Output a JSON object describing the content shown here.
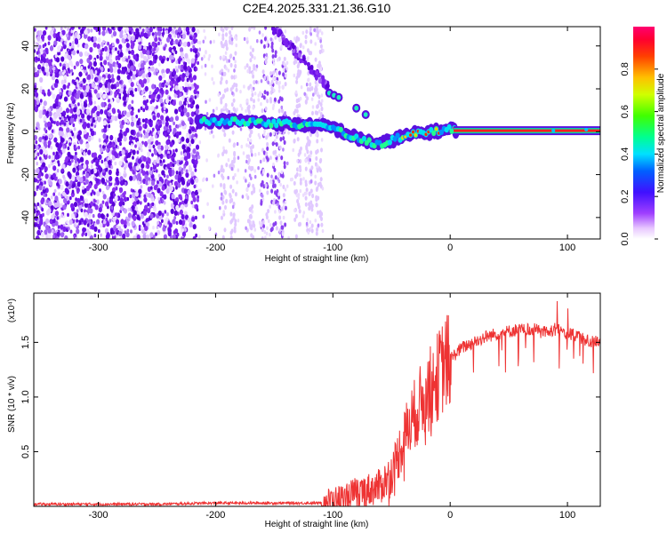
{
  "figure": {
    "title": "C2E4.2025.331.21.36.G10"
  },
  "chart_data": [
    {
      "type": "heatmap",
      "xlabel": "Height of straight line (km)",
      "ylabel": "Frequency (Hz)",
      "xlim": [
        -355,
        128
      ],
      "ylim": [
        -50,
        49
      ],
      "x_ticks": [
        -300,
        -200,
        -100,
        0,
        100
      ],
      "y_ticks": [
        -40,
        -20,
        0,
        20,
        40
      ],
      "colorbar": {
        "label": "Normalized spectral amplitude",
        "range": [
          0,
          1
        ],
        "ticks": [
          0.0,
          0.2,
          0.4,
          0.6,
          0.8
        ],
        "tick_labels": [
          "0.0",
          "0.2",
          "0.4",
          "0.6",
          "0.8"
        ],
        "colors": [
          "#ffffff",
          "#c080ff",
          "#6020e0",
          "#0040ff",
          "#00c0ff",
          "#00ff80",
          "#60ff00",
          "#ffff00",
          "#ff8000",
          "#ff0000",
          "#ff0060"
        ]
      },
      "signal_trace": {
        "x": [
          -215,
          -180,
          -150,
          -120,
          -100,
          -80,
          -60,
          -45,
          -30,
          -15,
          0,
          30,
          60,
          90,
          128
        ],
        "y": [
          5,
          5,
          4,
          3,
          2,
          -3,
          -6,
          -3,
          -1,
          0,
          1,
          0.5,
          0.5,
          0.5,
          0.5
        ]
      },
      "grid": false
    },
    {
      "type": "line",
      "xlabel": "Height of straight line (km)",
      "ylabel": "SNR (10 * v/v)",
      "multiplier": "(x10⁴)",
      "xlim": [
        -355,
        128
      ],
      "ylim": [
        0,
        1.95
      ],
      "x_ticks": [
        -300,
        -200,
        -100,
        0,
        100
      ],
      "y_ticks": [
        0.5,
        1.0,
        1.5
      ],
      "y_tick_labels": [
        "0.5",
        "1.0",
        "1.5"
      ],
      "color": "#ee3333",
      "series": [
        {
          "x": [
            -355,
            -300,
            -250,
            -200,
            -150,
            -110,
            -100,
            -90,
            -80,
            -70,
            -60,
            -50,
            -45,
            -40,
            -35,
            -30,
            -25,
            -20,
            -15,
            -10,
            -5,
            0,
            10,
            20,
            30,
            40,
            50,
            60,
            70,
            80,
            90,
            100,
            110,
            120,
            128
          ],
          "values": [
            0.02,
            0.02,
            0.02,
            0.03,
            0.03,
            0.03,
            0.05,
            0.08,
            0.12,
            0.15,
            0.18,
            0.3,
            0.45,
            0.6,
            0.75,
            0.85,
            0.95,
            1.05,
            1.1,
            1.2,
            1.3,
            1.35,
            1.45,
            1.5,
            1.55,
            1.58,
            1.6,
            1.62,
            1.62,
            1.6,
            1.62,
            1.58,
            1.55,
            1.5,
            1.52
          ]
        }
      ],
      "grid": false
    }
  ]
}
